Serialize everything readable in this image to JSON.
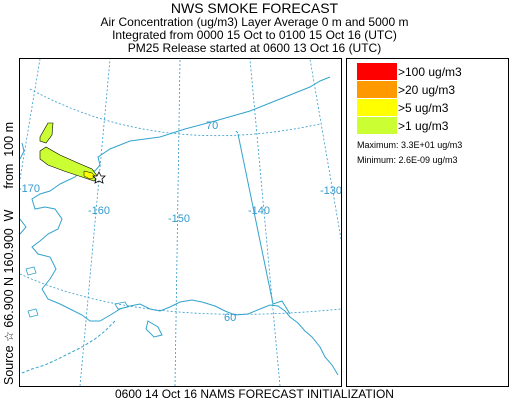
{
  "header": {
    "title": "NWS SMOKE FORECAST",
    "line2": "Air Concentration (ug/m3) Layer Average    0 m and  5000 m",
    "line3": "Integrated from 0000 15 Oct to 0100 15 Oct 16 (UTC)",
    "line4": "PM25 Release started at 0600 13 Oct 16 (UTC)"
  },
  "map": {
    "longitude_labels": [
      "-170",
      "-160",
      "-150",
      "-140",
      "-130"
    ],
    "latitude_labels": [
      "70",
      "60"
    ],
    "source_marker": "star-icon",
    "line_color": "#3399cc",
    "coast_color": "#33a3cc"
  },
  "legend": {
    "items": [
      {
        "label": ">100 ug/m3",
        "color": "#ff0000"
      },
      {
        "label": ">20 ug/m3",
        "color": "#ff9900"
      },
      {
        "label": ">5 ug/m3",
        "color": "#ffff00"
      },
      {
        "label": ">1 ug/m3",
        "color": "#ccff33"
      }
    ],
    "maximum": "Maximum: 3.3E+01 ug/m3",
    "minimum": "Minimum: 2.6E-09 ug/m3"
  },
  "side_label": {
    "prefix": "Source",
    "text": "66.900 N 160.900  W      from  100 m"
  },
  "footer": "0600 14 Oct 16 NAMS FORECAST INITIALIZATION"
}
